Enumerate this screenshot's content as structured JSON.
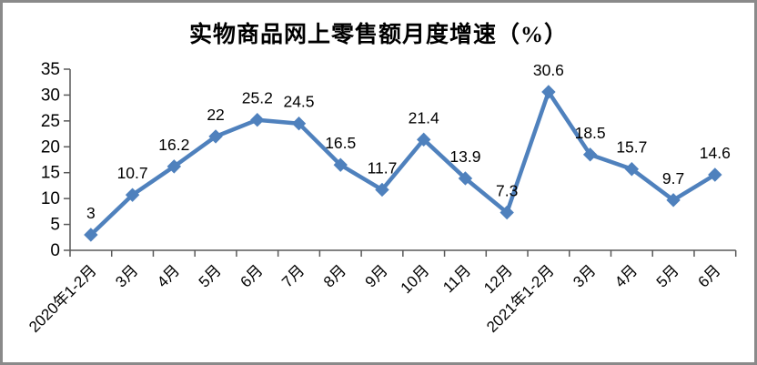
{
  "window": {
    "background": "#ffffff",
    "frame_border_color": "#8a8a8a"
  },
  "chart_data": {
    "type": "line",
    "title": "实物商品网上零售额月度增速（%）",
    "categories": [
      "2020年1-2月",
      "3月",
      "4月",
      "5月",
      "6月",
      "7月",
      "8月",
      "9月",
      "10月",
      "11月",
      "12月",
      "2021年1-2月",
      "3月",
      "4月",
      "5月",
      "6月"
    ],
    "values": [
      3,
      10.7,
      16.2,
      22,
      25.2,
      24.5,
      16.5,
      11.7,
      21.4,
      13.9,
      7.3,
      30.6,
      18.5,
      15.7,
      9.7,
      14.6
    ],
    "data_labels": [
      "3",
      "10.7",
      "16.2",
      "22",
      "25.2",
      "24.5",
      "16.5",
      "11.7",
      "21.4",
      "13.9",
      "7.3",
      "30.6",
      "18.5",
      "15.7",
      "9.7",
      "14.6"
    ],
    "yticks": [
      0,
      5,
      10,
      15,
      20,
      25,
      30,
      35
    ],
    "ylim": [
      0,
      35
    ],
    "xlabel": "",
    "ylabel": "",
    "grid": false,
    "legend": "none",
    "marker": "diamond",
    "line_color": "#4F81BD",
    "axis_color": "#595959",
    "text_color": "#000000",
    "x_label_rotation_deg": -45
  }
}
